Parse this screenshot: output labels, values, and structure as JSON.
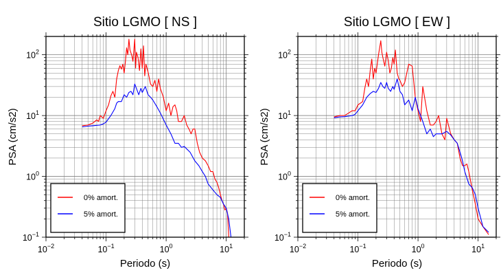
{
  "chart_data": [
    {
      "type": "line",
      "title": "Sitio LGMO [ NS ]",
      "xlabel": "Periodo (s)",
      "ylabel": "PSA (cm/s2)",
      "xscale": "log",
      "yscale": "log",
      "xlim": [
        0.01,
        20
      ],
      "ylim": [
        0.1,
        200
      ],
      "grid": true,
      "legend_position": "bottom-left",
      "x_ticks": [
        {
          "value": 0.01,
          "base": "10",
          "exp": "−2"
        },
        {
          "value": 0.1,
          "base": "10",
          "exp": "−1"
        },
        {
          "value": 1,
          "base": "10",
          "exp": "0"
        },
        {
          "value": 10,
          "base": "10",
          "exp": "1"
        }
      ],
      "y_ticks": [
        {
          "value": 0.1,
          "base": "10",
          "exp": "−1"
        },
        {
          "value": 1,
          "base": "10",
          "exp": "0"
        },
        {
          "value": 10,
          "base": "10",
          "exp": "1"
        },
        {
          "value": 100,
          "base": "10",
          "exp": "2"
        }
      ],
      "series": [
        {
          "name": "0% amort.",
          "color": "#ff0000",
          "x": [
            0.04,
            0.05,
            0.06,
            0.07,
            0.075,
            0.08,
            0.09,
            0.1,
            0.11,
            0.12,
            0.13,
            0.14,
            0.15,
            0.16,
            0.17,
            0.18,
            0.19,
            0.2,
            0.21,
            0.22,
            0.23,
            0.24,
            0.25,
            0.27,
            0.28,
            0.3,
            0.31,
            0.32,
            0.34,
            0.36,
            0.38,
            0.4,
            0.42,
            0.44,
            0.46,
            0.5,
            0.55,
            0.6,
            0.65,
            0.7,
            0.75,
            0.8,
            0.9,
            1.0,
            1.1,
            1.2,
            1.3,
            1.4,
            1.5,
            1.6,
            1.8,
            2.0,
            2.2,
            2.4,
            2.6,
            2.8,
            3.0,
            3.3,
            3.6,
            4.0,
            4.5,
            5.0,
            5.5,
            6.0,
            6.5,
            7.0,
            7.5,
            8.0,
            8.5,
            9.0,
            9.5,
            10.0,
            10.5,
            11.0,
            12.0,
            15.0
          ],
          "y": [
            6.8,
            7.0,
            7.5,
            8.5,
            8.0,
            10,
            9,
            12,
            15,
            21,
            25,
            20,
            40,
            55,
            66,
            58,
            70,
            50,
            78,
            130,
            100,
            180,
            120,
            95,
            78,
            180,
            60,
            110,
            90,
            55,
            125,
            60,
            140,
            45,
            70,
            52,
            33,
            30,
            38,
            25,
            40,
            28,
            20,
            12,
            16,
            10,
            14,
            15,
            12,
            8,
            8,
            10,
            7,
            6,
            5,
            6,
            6,
            3.5,
            2.5,
            2,
            1.8,
            1.5,
            1.2,
            1.2,
            0.9,
            0.8,
            0.65,
            0.5,
            0.4,
            0.35,
            0.28,
            0.3,
            0.25,
            0.1,
            0.1,
            0.1
          ]
        },
        {
          "name": "5% amort.",
          "color": "#0000ff",
          "x": [
            0.04,
            0.05,
            0.06,
            0.07,
            0.08,
            0.09,
            0.1,
            0.12,
            0.14,
            0.15,
            0.16,
            0.18,
            0.2,
            0.22,
            0.24,
            0.26,
            0.28,
            0.3,
            0.32,
            0.35,
            0.38,
            0.4,
            0.45,
            0.5,
            0.55,
            0.6,
            0.7,
            0.8,
            1.0,
            1.2,
            1.4,
            1.6,
            1.8,
            2.0,
            2.5,
            3.0,
            3.5,
            4.0,
            4.5,
            5.0,
            6.0,
            7.0,
            8.0,
            9.0,
            10.0,
            11.0,
            12.0,
            15.0
          ],
          "y": [
            6.5,
            6.7,
            6.8,
            6.9,
            7.0,
            7.3,
            7.8,
            10,
            13,
            16,
            17,
            17,
            22,
            20,
            24,
            25,
            22,
            33,
            28,
            22,
            28,
            24,
            30,
            22,
            20,
            18,
            14,
            11,
            7,
            5,
            3.5,
            3.5,
            3,
            3.1,
            2.5,
            1.8,
            1.5,
            1.2,
            1.0,
            0.75,
            0.6,
            0.5,
            0.45,
            0.35,
            0.3,
            0.2,
            0.1,
            0.1
          ]
        }
      ]
    },
    {
      "type": "line",
      "title": "Sitio LGMO [ EW ]",
      "xlabel": "Periodo (s)",
      "ylabel": "PSA (cm/s2)",
      "xscale": "log",
      "yscale": "log",
      "xlim": [
        0.01,
        20
      ],
      "ylim": [
        0.1,
        200
      ],
      "grid": true,
      "legend_position": "bottom-left",
      "x_ticks": [
        {
          "value": 0.01,
          "base": "10",
          "exp": "−2"
        },
        {
          "value": 0.1,
          "base": "10",
          "exp": "−1"
        },
        {
          "value": 1,
          "base": "10",
          "exp": "0"
        },
        {
          "value": 10,
          "base": "10",
          "exp": "1"
        }
      ],
      "y_ticks": [
        {
          "value": 0.1,
          "base": "10",
          "exp": "−1"
        },
        {
          "value": 1,
          "base": "10",
          "exp": "0"
        },
        {
          "value": 10,
          "base": "10",
          "exp": "1"
        },
        {
          "value": 100,
          "base": "10",
          "exp": "2"
        }
      ],
      "series": [
        {
          "name": "0% amort.",
          "color": "#ff0000",
          "x": [
            0.04,
            0.05,
            0.06,
            0.07,
            0.08,
            0.09,
            0.1,
            0.11,
            0.12,
            0.13,
            0.14,
            0.15,
            0.16,
            0.17,
            0.18,
            0.19,
            0.2,
            0.22,
            0.24,
            0.25,
            0.26,
            0.28,
            0.3,
            0.32,
            0.34,
            0.36,
            0.38,
            0.4,
            0.42,
            0.45,
            0.48,
            0.5,
            0.55,
            0.6,
            0.65,
            0.7,
            0.8,
            0.9,
            1.0,
            1.1,
            1.2,
            1.4,
            1.6,
            1.8,
            2.0,
            2.2,
            2.5,
            2.8,
            3.0,
            3.5,
            4.0,
            4.5,
            5.0,
            5.5,
            6.0,
            6.5,
            7.0,
            8.0,
            9.0,
            10.0,
            12.0,
            15.0
          ],
          "y": [
            9.5,
            10,
            10,
            11,
            12,
            12,
            15,
            16,
            17,
            28,
            40,
            30,
            55,
            85,
            40,
            60,
            50,
            100,
            170,
            110,
            90,
            65,
            110,
            80,
            50,
            60,
            90,
            70,
            120,
            50,
            40,
            38,
            30,
            35,
            50,
            70,
            65,
            20,
            12,
            8,
            30,
            12,
            7,
            7,
            8,
            10,
            5,
            4,
            9,
            5,
            4,
            3.5,
            2,
            1.5,
            1.5,
            1.6,
            1.2,
            0.6,
            0.35,
            0.2,
            0.15,
            0.11
          ]
        },
        {
          "name": "5% amort.",
          "color": "#0000ff",
          "x": [
            0.04,
            0.05,
            0.06,
            0.07,
            0.08,
            0.09,
            0.1,
            0.12,
            0.14,
            0.16,
            0.18,
            0.2,
            0.22,
            0.24,
            0.26,
            0.28,
            0.3,
            0.32,
            0.35,
            0.38,
            0.4,
            0.45,
            0.5,
            0.55,
            0.6,
            0.7,
            0.8,
            0.9,
            1.0,
            1.2,
            1.4,
            1.6,
            1.8,
            2.0,
            2.5,
            3.0,
            3.5,
            4.0,
            4.5,
            5.0,
            5.5,
            6.0,
            7.0,
            8.0,
            9.0,
            10.0,
            12.0,
            15.0
          ],
          "y": [
            9.2,
            9.5,
            9.6,
            9.8,
            10,
            10.5,
            12,
            15,
            20,
            23,
            25,
            24,
            28,
            35,
            30,
            28,
            35,
            28,
            25,
            30,
            27,
            40,
            25,
            22,
            15,
            18,
            12,
            20,
            13,
            8,
            5,
            6,
            4.5,
            5,
            5,
            5.5,
            4.8,
            4,
            3.5,
            2.5,
            1.8,
            1.2,
            0.75,
            0.65,
            0.5,
            0.3,
            0.15,
            0.12
          ]
        }
      ]
    }
  ]
}
